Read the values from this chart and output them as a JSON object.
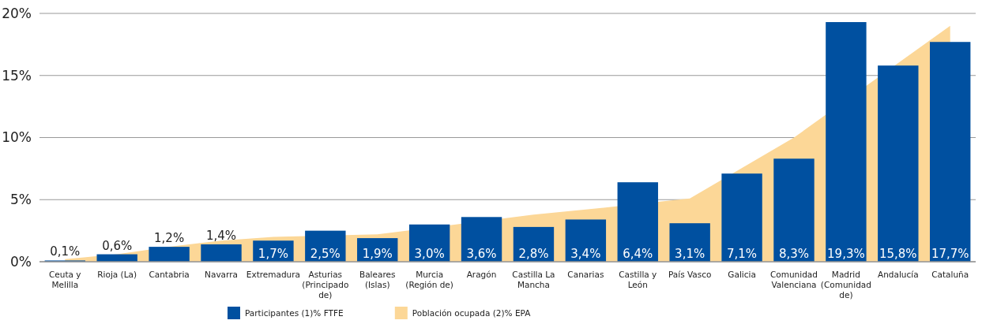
{
  "chart_data": {
    "type": "bar",
    "categories": [
      "Ceuta y Melilla",
      "Rioja (La)",
      "Cantabria",
      "Navarra",
      "Extremadura",
      "Asturias (Principado de)",
      "Baleares (Islas)",
      "Murcia (Región de)",
      "Aragón",
      "Castilla La Mancha",
      "Canarias",
      "Castilla y León",
      "País Vasco",
      "Galicia",
      "Comunidad Valenciana",
      "Madrid (Comunidad de)",
      "Andalucía",
      "Cataluña"
    ],
    "series": [
      {
        "name": "Población ocupada (2)% EPA",
        "type": "area",
        "color": "#fcd797",
        "values": [
          0.2,
          0.6,
          1.2,
          1.7,
          2.0,
          null,
          2.2,
          null,
          null,
          3.8,
          4.2,
          null,
          5.1,
          null,
          10.0,
          null,
          16.0,
          19.0
        ]
      },
      {
        "name": "Participantes (1)% FTFE",
        "color": "#0050a0",
        "values": [
          0.1,
          0.6,
          1.2,
          1.4,
          1.7,
          2.5,
          1.9,
          3.0,
          3.6,
          2.8,
          3.4,
          6.4,
          3.1,
          7.1,
          8.3,
          19.3,
          15.8,
          17.7
        ],
        "value_labels": [
          "0,1%",
          "0,6%",
          "1,2%",
          "1,4%",
          "1,7%",
          "2,5%",
          "1,9%",
          "3,0%",
          "3,6%",
          "2,8%",
          "3,4%",
          "6,4%",
          "3,1%",
          "7,1%",
          "8,3%",
          "19,3%",
          "15,8%",
          "17,7%"
        ]
      }
    ],
    "ylim": [
      0,
      20
    ],
    "yticks": [
      {
        "value": 0,
        "label": "0%"
      },
      {
        "value": 5,
        "label": "5%"
      },
      {
        "value": 10,
        "label": "10%"
      },
      {
        "value": 15,
        "label": "15%"
      },
      {
        "value": 20,
        "label": "20%"
      }
    ],
    "grid": "y",
    "legend": "bottom"
  }
}
